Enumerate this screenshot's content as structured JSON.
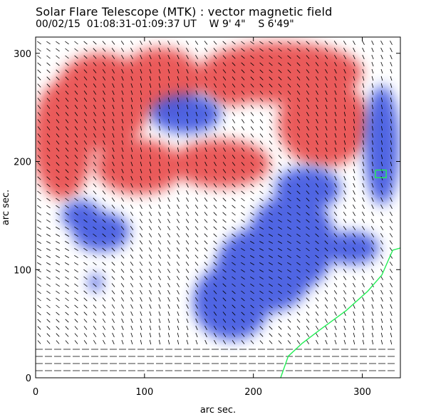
{
  "chart_data": {
    "type": "heatmap",
    "title": "Solar Flare Telescope (MTK) : vector magnetic field",
    "subtitle": {
      "date": "00/02/15",
      "time_range": "01:08:31-01:09:37 UT",
      "west": "W 9' 4\"",
      "south": "S 6'49\""
    },
    "xlabel": "arc sec.",
    "ylabel": "arc sec.",
    "xlim": [
      0,
      335
    ],
    "ylim": [
      0,
      315
    ],
    "x_ticks": [
      0,
      100,
      200,
      300
    ],
    "y_ticks": [
      0,
      100,
      200,
      300
    ],
    "colors": {
      "positive": "#e84a4a",
      "negative": "#3d55e0",
      "contour": "#22ee55",
      "vector": "#000000"
    },
    "positive_regions": [
      {
        "x": 60,
        "y": 255,
        "rx": 45,
        "ry": 45
      },
      {
        "x": 25,
        "y": 220,
        "rx": 28,
        "ry": 55
      },
      {
        "x": 115,
        "y": 275,
        "rx": 38,
        "ry": 30
      },
      {
        "x": 225,
        "y": 282,
        "rx": 75,
        "ry": 28
      },
      {
        "x": 265,
        "y": 235,
        "rx": 42,
        "ry": 40
      },
      {
        "x": 170,
        "y": 198,
        "rx": 45,
        "ry": 22
      },
      {
        "x": 95,
        "y": 195,
        "rx": 40,
        "ry": 25
      },
      {
        "x": 180,
        "y": 270,
        "rx": 28,
        "ry": 18
      }
    ],
    "negative_regions": [
      {
        "x": 138,
        "y": 244,
        "rx": 32,
        "ry": 18
      },
      {
        "x": 60,
        "y": 135,
        "rx": 26,
        "ry": 18
      },
      {
        "x": 42,
        "y": 150,
        "rx": 18,
        "ry": 14
      },
      {
        "x": 318,
        "y": 215,
        "rx": 16,
        "ry": 55
      },
      {
        "x": 235,
        "y": 125,
        "rx": 40,
        "ry": 45
      },
      {
        "x": 210,
        "y": 100,
        "rx": 45,
        "ry": 40
      },
      {
        "x": 180,
        "y": 70,
        "rx": 35,
        "ry": 35
      },
      {
        "x": 290,
        "y": 120,
        "rx": 25,
        "ry": 15
      },
      {
        "x": 55,
        "y": 88,
        "rx": 6,
        "ry": 8
      },
      {
        "x": 250,
        "y": 175,
        "rx": 30,
        "ry": 20
      }
    ],
    "contours": [
      [
        [
          225,
          0
        ],
        [
          232,
          20
        ],
        [
          245,
          32
        ],
        [
          262,
          45
        ],
        [
          285,
          62
        ],
        [
          305,
          80
        ],
        [
          318,
          95
        ],
        [
          328,
          118
        ],
        [
          335,
          120
        ]
      ],
      [
        [
          312,
          192
        ],
        [
          322,
          192
        ],
        [
          322,
          185
        ],
        [
          312,
          185
        ],
        [
          312,
          192
        ]
      ]
    ]
  }
}
